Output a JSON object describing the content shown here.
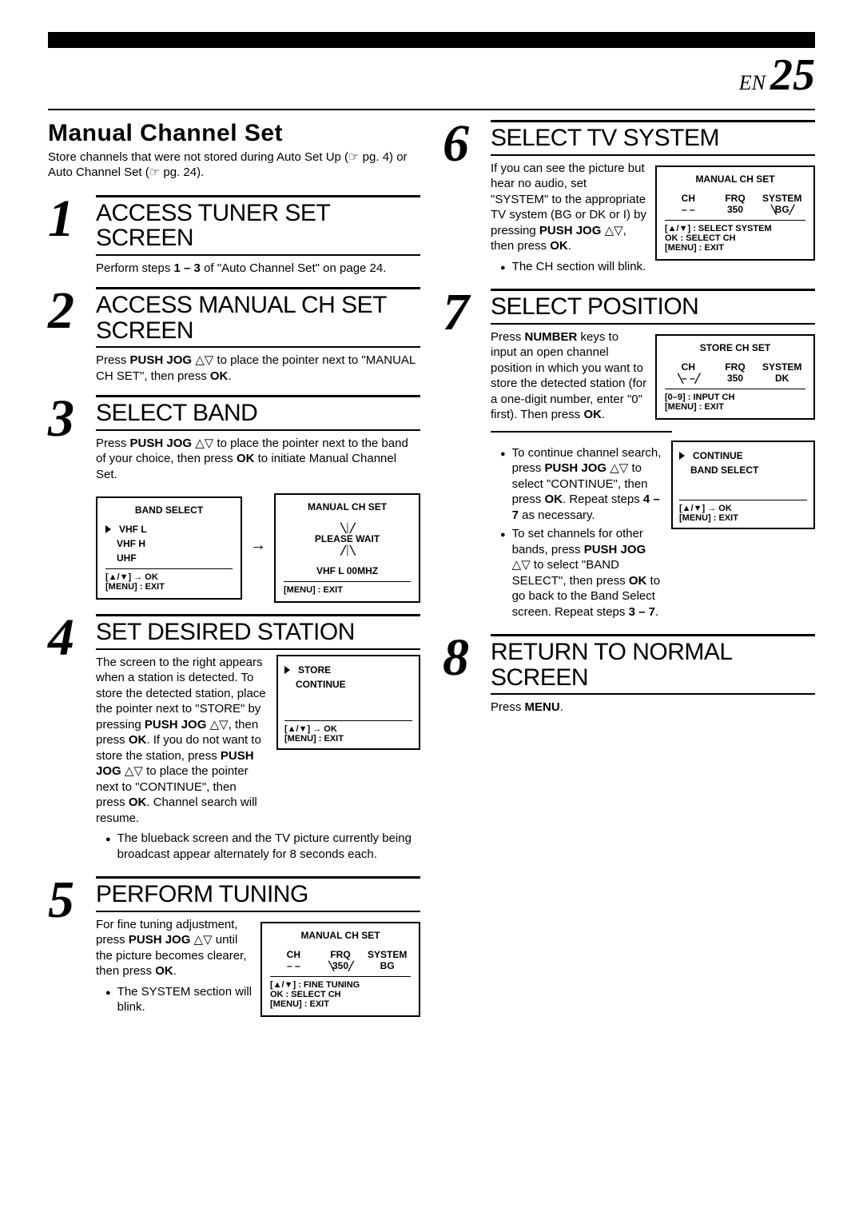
{
  "page": {
    "lang": "EN",
    "number": "25"
  },
  "title": "Manual Channel Set",
  "intro": "Store channels that were not stored during Auto Set Up (☞ pg. 4) or Auto Channel Set (☞ pg. 24).",
  "steps": {
    "s1": {
      "num": "1",
      "heading": "ACCESS TUNER SET SCREEN",
      "body_pre": "Perform steps ",
      "body_bold1": "1 – 3",
      "body_mid": " of \"Auto Channel Set\" on page 24."
    },
    "s2": {
      "num": "2",
      "heading": "ACCESS MANUAL CH SET SCREEN",
      "body": "Press <b>PUSH JOG</b> △▽ to place the pointer next to \"MANUAL CH SET\", then press <b>OK</b>."
    },
    "s3": {
      "num": "3",
      "heading": "SELECT BAND",
      "body": "Press <b>PUSH JOG</b> △▽ to place the pointer next to the band of your choice, then press <b>OK</b> to initiate Manual Channel Set.",
      "osd_left": {
        "title": "BAND SELECT",
        "items": [
          "VHF L",
          "VHF H",
          "UHF"
        ],
        "footer1": "[▲/▼] → OK",
        "footer2": "[MENU] : EXIT"
      },
      "osd_right": {
        "title": "MANUAL CH SET",
        "line1": "PLEASE WAIT",
        "line2": "VHF L  00MHZ",
        "footer2": "[MENU] : EXIT"
      }
    },
    "s4": {
      "num": "4",
      "heading": "SET DESIRED STATION",
      "body": "The screen to the right appears when a station is detected. To store the detected station, place the pointer next to \"STORE\" by pressing <b>PUSH JOG</b> △▽, then press <b>OK</b>. If you do not want to store the station, press <b>PUSH JOG</b> △▽ to place the pointer next to \"CONTINUE\", then press <b>OK</b>. Channel search will resume.",
      "bullet": "The blueback screen and the TV picture currently being broadcast appear alternately for 8 seconds each.",
      "osd": {
        "items": [
          "STORE",
          "CONTINUE"
        ],
        "footer1": "[▲/▼] → OK",
        "footer2": "[MENU] : EXIT"
      }
    },
    "s5": {
      "num": "5",
      "heading": "PERFORM TUNING",
      "body": "For fine tuning adjustment, press <b>PUSH JOG</b> △▽ until the picture becomes clearer, then press <b>OK</b>.",
      "bullet": "The SYSTEM section will blink.",
      "osd": {
        "title": "MANUAL CH SET",
        "cols": [
          "CH",
          "FRQ",
          "SYSTEM"
        ],
        "vals": [
          "– –",
          "350",
          "BG"
        ],
        "blink_idx": 1,
        "footer1": "[▲/▼] : FINE TUNING",
        "footer2": "OK : SELECT CH",
        "footer3": "[MENU] : EXIT"
      }
    },
    "s6": {
      "num": "6",
      "heading": "SELECT TV SYSTEM",
      "body": "If you can see the picture but hear no audio, set \"SYSTEM\" to the appropriate TV system (BG or DK or I) by pressing <b>PUSH JOG</b> △▽, then press <b>OK</b>.",
      "bullet": "The CH section will blink.",
      "osd": {
        "title": "MANUAL CH SET",
        "cols": [
          "CH",
          "FRQ",
          "SYSTEM"
        ],
        "vals": [
          "– –",
          "350",
          "BG"
        ],
        "blink_idx": 2,
        "footer1": "[▲/▼] : SELECT SYSTEM",
        "footer2": "OK : SELECT CH",
        "footer3": "[MENU] : EXIT"
      }
    },
    "s7": {
      "num": "7",
      "heading": "SELECT POSITION",
      "body": "Press <b>NUMBER</b> keys to input an open channel position in which you want to store the detected station (for a one-digit number, enter \"0\" first). Then press <b>OK</b>.",
      "osd": {
        "title": "STORE CH SET",
        "cols": [
          "CH",
          "FRQ",
          "SYSTEM"
        ],
        "vals": [
          "– –",
          "350",
          "DK"
        ],
        "blink_idx": 0,
        "footer1": "[0–9] : INPUT CH",
        "footer3": "[MENU] : EXIT"
      },
      "cont_bullet1": "To continue channel search, press <b>PUSH JOG</b> △▽ to select \"CONTINUE\", then press <b>OK</b>. Repeat steps <b>4 – 7</b> as necessary.",
      "cont_bullet2": "To set channels for other bands, press <b>PUSH JOG</b> △▽ to select \"BAND SELECT\", then press <b>OK</b> to go back to the Band Select screen. Repeat steps <b>3 – 7</b>.",
      "cont_osd": {
        "items": [
          "CONTINUE",
          "BAND SELECT"
        ],
        "footer1": "[▲/▼] → OK",
        "footer2": "[MENU] : EXIT"
      }
    },
    "s8": {
      "num": "8",
      "heading": "RETURN TO NORMAL SCREEN",
      "body": "Press <b>MENU</b>."
    }
  }
}
